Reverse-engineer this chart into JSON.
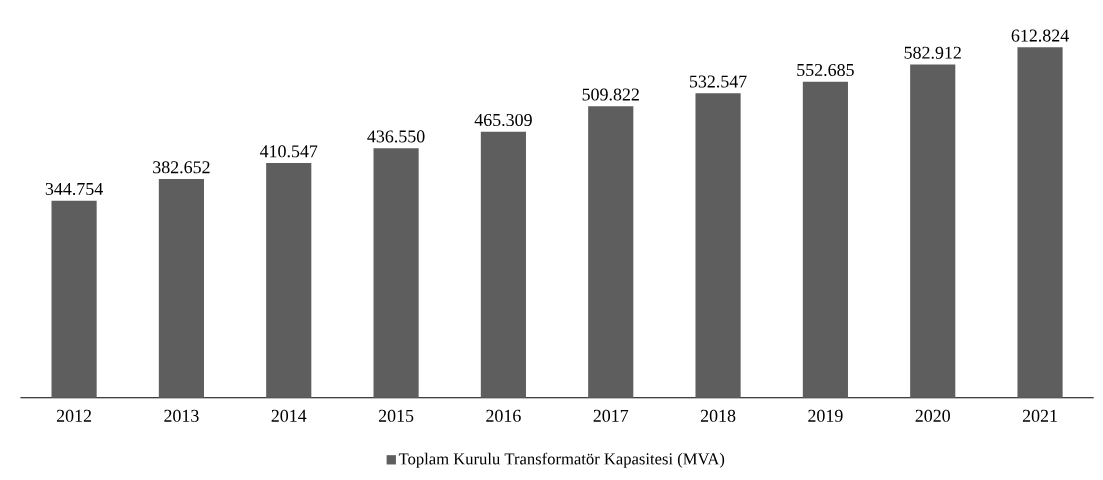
{
  "chart_data": {
    "type": "bar",
    "categories": [
      "2012",
      "2013",
      "2014",
      "2015",
      "2016",
      "2017",
      "2018",
      "2019",
      "2020",
      "2021"
    ],
    "series": [
      {
        "name": "Toplam Kurulu Transformatör Kapasitesi (MVA)",
        "color": "#5e5e5e",
        "values": [
          344754,
          382652,
          410547,
          436550,
          465309,
          509822,
          532547,
          552685,
          582912,
          612824
        ],
        "value_labels": [
          "344.754",
          "382.652",
          "410.547",
          "436.550",
          "465.309",
          "509.822",
          "532.547",
          "552.685",
          "582.912",
          "612.824"
        ]
      }
    ],
    "tick_labels": "x",
    "legend": "bottom",
    "grid": false
  }
}
